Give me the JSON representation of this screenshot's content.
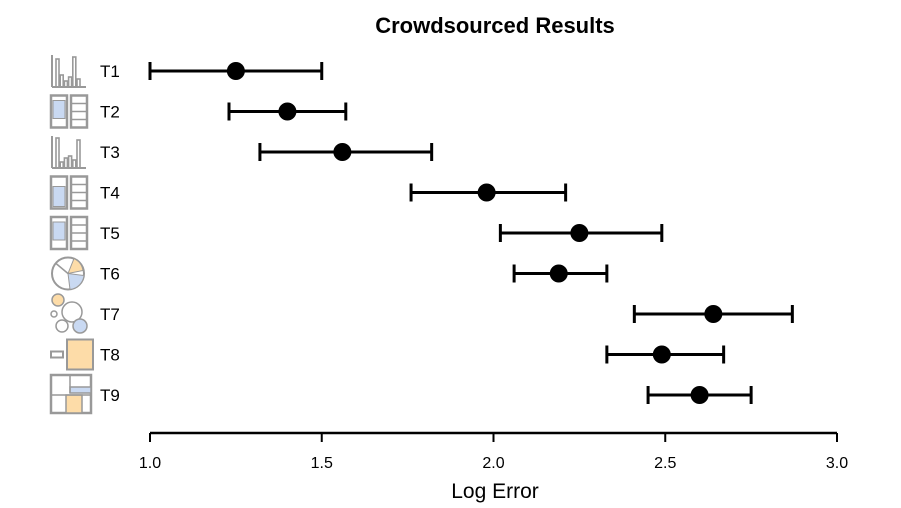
{
  "chart_data": {
    "type": "scatter",
    "title": "Crowdsourced Results",
    "xlabel": "Log Error",
    "ylabel": "",
    "xlim": [
      1.0,
      3.0
    ],
    "xticks": [
      "1.0",
      "1.5",
      "2.0",
      "2.5",
      "3.0"
    ],
    "grid": false,
    "legend": "none",
    "error_bars": true,
    "point_color": "#000000",
    "categories": [
      "T1",
      "T2",
      "T3",
      "T4",
      "T5",
      "T6",
      "T7",
      "T8",
      "T9"
    ],
    "series": [
      {
        "values": [
          1.25,
          1.4,
          1.56,
          1.98,
          2.25,
          2.19,
          2.64,
          2.49,
          2.6
        ],
        "lower": [
          1.0,
          1.23,
          1.32,
          1.76,
          2.02,
          2.06,
          2.41,
          2.33,
          2.45
        ],
        "upper": [
          1.5,
          1.57,
          1.82,
          2.21,
          2.49,
          2.33,
          2.87,
          2.67,
          2.75
        ]
      }
    ],
    "row_icons": [
      "bar-chart-icon",
      "stacked-bar-icon",
      "bar-chart-icon",
      "stacked-bar-icon",
      "stacked-bar-icon",
      "pie-chart-icon",
      "bubble-chart-icon",
      "area-square-icon",
      "treemap-icon"
    ],
    "icon_colors": {
      "gray": "#999999",
      "blue": "#c9d9f2",
      "orange": "#fddca8"
    }
  }
}
